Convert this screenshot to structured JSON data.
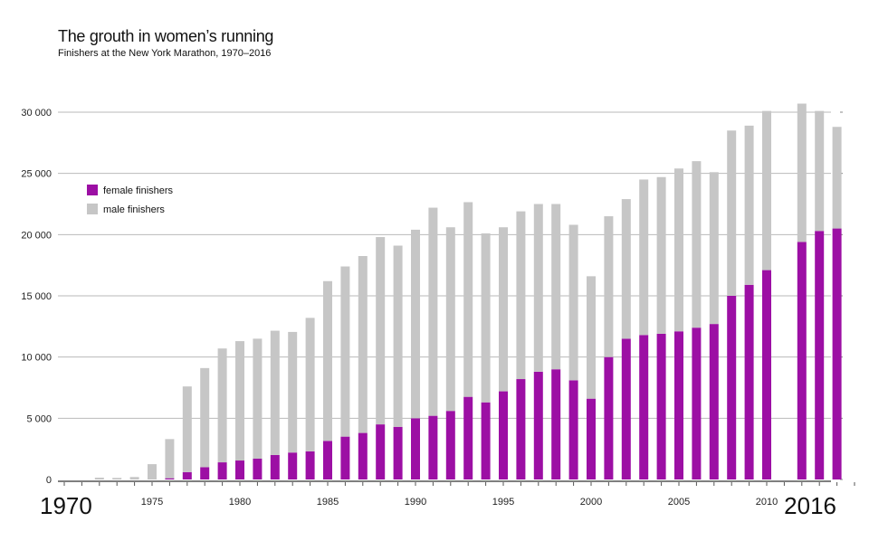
{
  "title": "The grouth in women’s running",
  "subtitle": "Finishers at the New York Marathon, 1970–2016",
  "colors": {
    "female": "#9c0fa4",
    "male": "#c6c6c6",
    "grid": "#b9b9b9"
  },
  "chart_data": {
    "type": "bar",
    "stacked": true,
    "title": "The grouth in women’s running",
    "subtitle": "Finishers at the New York Marathon, 1970–2016",
    "x": [
      1970,
      1971,
      1972,
      1973,
      1974,
      1975,
      1976,
      1977,
      1978,
      1979,
      1980,
      1981,
      1982,
      1983,
      1984,
      1985,
      1986,
      1987,
      1988,
      1989,
      1990,
      1991,
      1992,
      1993,
      1994,
      1995,
      1996,
      1997,
      1998,
      1999,
      2000,
      2001,
      2002,
      2003,
      2004,
      2005,
      2006,
      2007,
      2008,
      2009,
      2010,
      2011,
      2012,
      2013,
      2014,
      2015,
      2016
    ],
    "x_tick_labels": [
      "1970",
      "1975",
      "1980",
      "1985",
      "1990",
      "1995",
      "2000",
      "2005",
      "2010",
      "2016"
    ],
    "big_tick_labels": [
      "1970",
      "2016"
    ],
    "ylim": [
      0,
      30000
    ],
    "y_ticks": [
      "0",
      "5 000",
      "10 000",
      "15 000",
      "20 000",
      "25 000",
      "30 000"
    ],
    "legend_position": "top-left",
    "grid": true,
    "series": [
      {
        "name": "female finishers",
        "values": [
          0,
          0,
          0,
          0,
          0,
          0,
          100,
          600,
          1000,
          1400,
          1550,
          1700,
          2000,
          2200,
          2300,
          3150,
          3500,
          3800,
          4500,
          4300,
          5000,
          5200,
          5600,
          6750,
          6300,
          7200,
          8200,
          8800,
          9000,
          8100,
          6600,
          10000,
          11500,
          11800,
          11900,
          12100,
          12400,
          12700,
          15000,
          15900,
          17100,
          0,
          19400,
          20300,
          20500,
          0,
          0
        ]
      },
      {
        "name": "male finishers",
        "values": [
          0,
          0,
          150,
          130,
          200,
          1250,
          3200,
          7000,
          8100,
          9300,
          9750,
          9800,
          10150,
          9850,
          10900,
          13050,
          13900,
          14450,
          15300,
          14800,
          15400,
          17000,
          15000,
          15900,
          13800,
          13400,
          13700,
          13700,
          13500,
          12700,
          10000,
          11500,
          11400,
          12700,
          12800,
          13300,
          13600,
          12400,
          13500,
          13000,
          13000,
          0,
          11300,
          9800,
          8300,
          0,
          0
        ]
      }
    ]
  }
}
